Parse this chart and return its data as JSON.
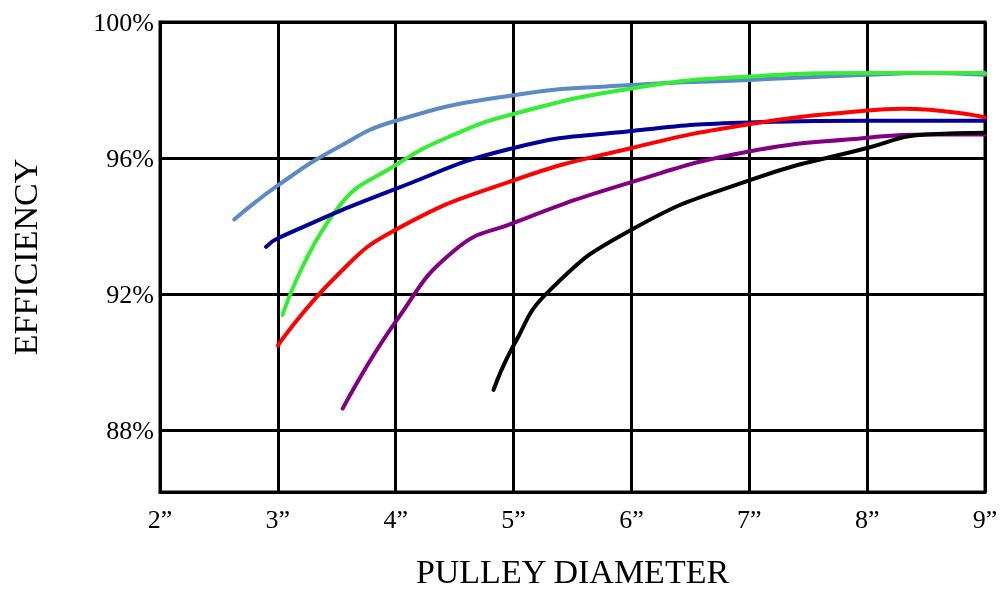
{
  "chart_data": {
    "type": "line",
    "xlabel": "PULLEY DIAMETER",
    "ylabel": "EFFICIENCY",
    "xlim": [
      2,
      9
    ],
    "xticks": [
      {
        "value": 2,
        "label": "2”"
      },
      {
        "value": 3,
        "label": "3”"
      },
      {
        "value": 4,
        "label": "4”"
      },
      {
        "value": 5,
        "label": "5”"
      },
      {
        "value": 6,
        "label": "6”"
      },
      {
        "value": 7,
        "label": "7”"
      },
      {
        "value": 8,
        "label": "8”"
      },
      {
        "value": 9,
        "label": "9”"
      }
    ],
    "ylim": [
      86.2,
      100
    ],
    "yticks": [
      {
        "value": 88,
        "label": "88%"
      },
      {
        "value": 92,
        "label": "92%"
      },
      {
        "value": 96,
        "label": "96%"
      },
      {
        "value": 100,
        "label": "100%"
      }
    ],
    "grid": true,
    "marker": "none",
    "line_style": "solid",
    "series": [
      {
        "color": "#5b8ac6",
        "x": [
          2.63,
          3,
          3.5,
          4,
          5,
          6,
          7,
          8,
          8.5,
          9
        ],
        "values": [
          94.2,
          95.2,
          96.3,
          97.1,
          97.85,
          98.15,
          98.3,
          98.45,
          98.5,
          98.45
        ]
      },
      {
        "color": "#33ee33",
        "x": [
          3.04,
          3.5,
          4,
          4.5,
          5,
          6,
          7,
          8,
          9
        ],
        "values": [
          91.4,
          94.5,
          95.8,
          96.7,
          97.3,
          98.05,
          98.4,
          98.5,
          98.5
        ]
      },
      {
        "color": "#000099",
        "x": [
          2.9,
          3,
          4,
          5,
          6,
          7,
          8,
          9
        ],
        "values": [
          93.4,
          93.65,
          95.1,
          96.3,
          96.8,
          97.05,
          97.1,
          97.1
        ]
      },
      {
        "color": "#ff0000",
        "x": [
          3,
          3.5,
          4,
          5,
          6,
          7,
          8,
          8.3,
          9
        ],
        "values": [
          90.5,
          92.55,
          93.9,
          95.35,
          96.3,
          97.0,
          97.4,
          97.45,
          97.2
        ]
      },
      {
        "color": "#800080",
        "x": [
          3.55,
          4,
          4.5,
          5,
          6,
          7,
          8,
          8.5,
          9
        ],
        "values": [
          88.65,
          91.2,
          93.3,
          94.1,
          95.3,
          96.2,
          96.6,
          96.7,
          96.7
        ]
      },
      {
        "color": "#000000",
        "x": [
          4.83,
          5,
          5.3,
          6,
          7,
          8,
          8.5,
          9
        ],
        "values": [
          89.2,
          90.5,
          92.1,
          93.9,
          95.35,
          96.3,
          96.7,
          96.75
        ]
      }
    ]
  }
}
